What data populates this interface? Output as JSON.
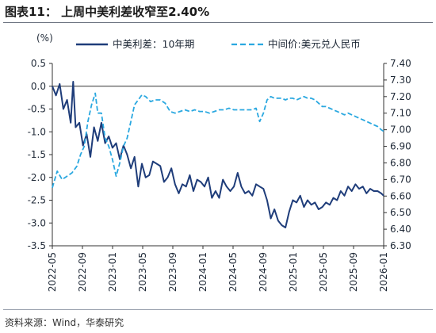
{
  "figure": {
    "title": "图表11： 上周中美利差收窄至2.40%",
    "source": "资料来源：Wind，华泰研究"
  },
  "chart_data": {
    "type": "line",
    "ylabel_left": "(%)",
    "ylim_left": [
      -3.5,
      0.5
    ],
    "yticks_left": [
      "0.5",
      "0.0",
      "-0.5",
      "-1.0",
      "-1.5",
      "-2.0",
      "-2.5",
      "-3.0",
      "-3.5"
    ],
    "ylim_right": [
      6.3,
      7.4
    ],
    "yticks_right": [
      "7.40",
      "7.30",
      "7.20",
      "7.10",
      "7.00",
      "6.90",
      "6.80",
      "6.70",
      "6.60",
      "6.50",
      "6.40",
      "6.30"
    ],
    "xticks": [
      "2022-05",
      "2022-09",
      "2023-01",
      "2023-05",
      "2023-09",
      "2024-01",
      "2024-05",
      "2024-09",
      "2025-01",
      "2025-05",
      "2025-09",
      "2026-01"
    ],
    "legend_position": "top",
    "series": [
      {
        "name": "中美利差：10年期",
        "axis": "left",
        "color": "#1f3d7a",
        "style": "solid",
        "points": [
          [
            0.0,
            0.0
          ],
          [
            0.3,
            -0.2
          ],
          [
            0.6,
            0.05
          ],
          [
            0.9,
            -0.5
          ],
          [
            1.2,
            -0.3
          ],
          [
            1.5,
            -0.8
          ],
          [
            1.7,
            0.1
          ],
          [
            1.9,
            -0.9
          ],
          [
            2.2,
            -0.8
          ],
          [
            2.5,
            -1.3
          ],
          [
            2.8,
            -1.05
          ],
          [
            3.1,
            -1.55
          ],
          [
            3.4,
            -0.9
          ],
          [
            3.7,
            -1.2
          ],
          [
            4.0,
            -0.8
          ],
          [
            4.3,
            -1.25
          ],
          [
            4.6,
            -1.1
          ],
          [
            4.9,
            -1.35
          ],
          [
            5.2,
            -1.25
          ],
          [
            5.5,
            -1.6
          ],
          [
            5.8,
            -1.3
          ],
          [
            6.1,
            -1.5
          ],
          [
            6.4,
            -1.8
          ],
          [
            6.7,
            -1.55
          ],
          [
            7.0,
            -2.2
          ],
          [
            7.3,
            -1.7
          ],
          [
            7.6,
            -2.0
          ],
          [
            7.9,
            -1.95
          ],
          [
            8.2,
            -1.65
          ],
          [
            8.5,
            -1.7
          ],
          [
            8.8,
            -1.75
          ],
          [
            9.1,
            -2.1
          ],
          [
            9.4,
            -2.0
          ],
          [
            9.7,
            -1.8
          ],
          [
            10.0,
            -2.15
          ],
          [
            10.3,
            -2.35
          ],
          [
            10.6,
            -2.15
          ],
          [
            10.9,
            -2.2
          ],
          [
            11.2,
            -1.95
          ],
          [
            11.5,
            -2.3
          ],
          [
            11.8,
            -2.05
          ],
          [
            12.1,
            -2.1
          ],
          [
            12.4,
            -2.2
          ],
          [
            12.7,
            -2.0
          ],
          [
            13.0,
            -2.45
          ],
          [
            13.3,
            -2.3
          ],
          [
            13.6,
            -2.45
          ],
          [
            13.9,
            -2.05
          ],
          [
            14.2,
            -2.2
          ],
          [
            14.5,
            -2.3
          ],
          [
            14.8,
            -2.2
          ],
          [
            15.1,
            -1.9
          ],
          [
            15.4,
            -2.2
          ],
          [
            15.7,
            -2.35
          ],
          [
            16.0,
            -2.3
          ],
          [
            16.3,
            -2.4
          ],
          [
            16.6,
            -2.15
          ],
          [
            16.9,
            -2.2
          ],
          [
            17.2,
            -2.25
          ],
          [
            17.5,
            -2.5
          ],
          [
            17.8,
            -2.9
          ],
          [
            18.1,
            -2.7
          ],
          [
            18.4,
            -2.95
          ],
          [
            18.7,
            -3.05
          ],
          [
            19.0,
            -3.1
          ],
          [
            19.3,
            -2.75
          ],
          [
            19.6,
            -2.5
          ],
          [
            19.9,
            -2.55
          ],
          [
            20.2,
            -2.4
          ],
          [
            20.5,
            -2.65
          ],
          [
            20.8,
            -2.5
          ],
          [
            21.1,
            -2.6
          ],
          [
            21.4,
            -2.55
          ],
          [
            21.7,
            -2.7
          ],
          [
            22.0,
            -2.65
          ],
          [
            22.3,
            -2.55
          ],
          [
            22.6,
            -2.6
          ],
          [
            22.9,
            -2.45
          ],
          [
            23.2,
            -2.5
          ],
          [
            23.5,
            -2.3
          ],
          [
            23.8,
            -2.4
          ],
          [
            24.1,
            -2.2
          ],
          [
            24.4,
            -2.3
          ],
          [
            24.7,
            -2.15
          ],
          [
            25.0,
            -2.25
          ],
          [
            25.3,
            -2.2
          ],
          [
            25.6,
            -2.35
          ],
          [
            25.9,
            -2.25
          ],
          [
            26.2,
            -2.3
          ],
          [
            26.5,
            -2.3
          ],
          [
            26.8,
            -2.35
          ],
          [
            27.0,
            -2.4
          ]
        ]
      },
      {
        "name": "中间价:美元兑人民币",
        "axis": "right",
        "color": "#2aa8e0",
        "style": "dashed",
        "points": [
          [
            0.0,
            6.65
          ],
          [
            0.4,
            6.75
          ],
          [
            0.8,
            6.7
          ],
          [
            1.2,
            6.72
          ],
          [
            1.6,
            6.74
          ],
          [
            2.0,
            6.78
          ],
          [
            2.3,
            6.85
          ],
          [
            2.6,
            6.9
          ],
          [
            2.9,
            7.05
          ],
          [
            3.2,
            7.15
          ],
          [
            3.5,
            7.22
          ],
          [
            3.7,
            7.1
          ],
          [
            4.0,
            7.1
          ],
          [
            4.3,
            6.95
          ],
          [
            4.6,
            6.9
          ],
          [
            4.9,
            6.82
          ],
          [
            5.2,
            6.72
          ],
          [
            5.5,
            6.8
          ],
          [
            5.8,
            6.9
          ],
          [
            6.1,
            6.95
          ],
          [
            6.4,
            7.05
          ],
          [
            6.7,
            7.15
          ],
          [
            7.0,
            7.18
          ],
          [
            7.3,
            7.21
          ],
          [
            7.6,
            7.2
          ],
          [
            8.0,
            7.17
          ],
          [
            8.4,
            7.18
          ],
          [
            8.8,
            7.18
          ],
          [
            9.2,
            7.16
          ],
          [
            9.6,
            7.11
          ],
          [
            10.0,
            7.1
          ],
          [
            10.4,
            7.11
          ],
          [
            10.8,
            7.12
          ],
          [
            11.2,
            7.11
          ],
          [
            11.6,
            7.12
          ],
          [
            12.0,
            7.11
          ],
          [
            12.4,
            7.11
          ],
          [
            12.8,
            7.1
          ],
          [
            13.2,
            7.11
          ],
          [
            13.6,
            7.12
          ],
          [
            14.0,
            7.12
          ],
          [
            14.4,
            7.13
          ],
          [
            14.8,
            7.12
          ],
          [
            15.2,
            7.12
          ],
          [
            15.6,
            7.12
          ],
          [
            16.0,
            7.12
          ],
          [
            16.3,
            7.12
          ],
          [
            16.6,
            7.13
          ],
          [
            16.9,
            7.05
          ],
          [
            17.2,
            7.1
          ],
          [
            17.5,
            7.18
          ],
          [
            17.8,
            7.2
          ],
          [
            18.1,
            7.19
          ],
          [
            18.4,
            7.19
          ],
          [
            18.7,
            7.19
          ],
          [
            19.0,
            7.18
          ],
          [
            19.3,
            7.19
          ],
          [
            19.6,
            7.19
          ],
          [
            19.9,
            7.18
          ],
          [
            20.2,
            7.19
          ],
          [
            20.5,
            7.2
          ],
          [
            20.8,
            7.19
          ],
          [
            21.1,
            7.19
          ],
          [
            21.4,
            7.18
          ],
          [
            21.7,
            7.16
          ],
          [
            22.0,
            7.14
          ],
          [
            22.3,
            7.14
          ],
          [
            22.6,
            7.13
          ],
          [
            22.9,
            7.12
          ],
          [
            23.2,
            7.11
          ],
          [
            23.5,
            7.1
          ],
          [
            23.8,
            7.09
          ],
          [
            24.1,
            7.1
          ],
          [
            24.4,
            7.09
          ],
          [
            24.7,
            7.08
          ],
          [
            25.0,
            7.07
          ],
          [
            25.3,
            7.06
          ],
          [
            25.6,
            7.05
          ],
          [
            25.9,
            7.04
          ],
          [
            26.2,
            7.03
          ],
          [
            26.5,
            7.02
          ],
          [
            26.8,
            7.0
          ],
          [
            27.0,
            6.99
          ]
        ]
      }
    ]
  }
}
